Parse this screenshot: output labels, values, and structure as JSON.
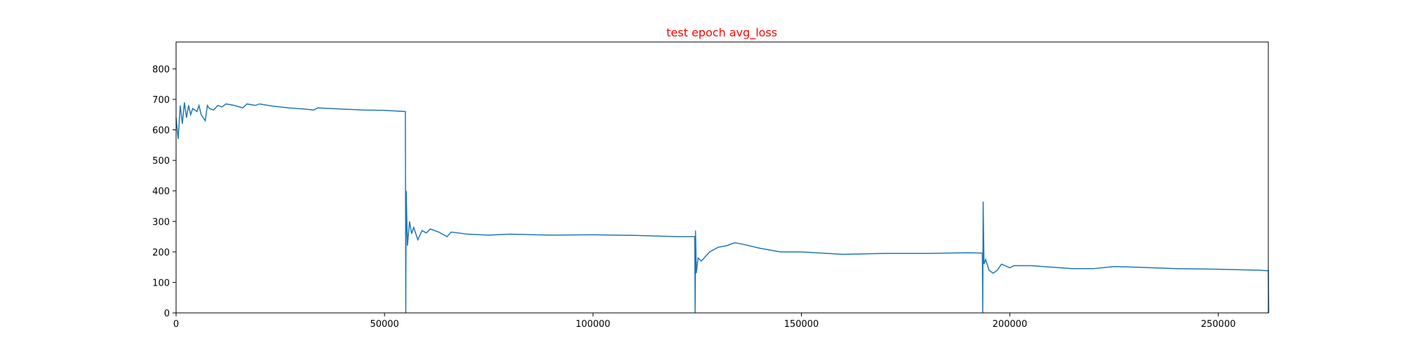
{
  "chart_data": {
    "type": "line",
    "title": "test epoch avg_loss",
    "title_color": "#ff0000",
    "x": [
      0,
      500,
      1000,
      1500,
      2000,
      2500,
      3000,
      3500,
      4000,
      5000,
      5500,
      6000,
      7000,
      7500,
      8000,
      9000,
      10000,
      11000,
      12000,
      14000,
      16000,
      17000,
      19000,
      20000,
      23000,
      27000,
      31000,
      33000,
      34000,
      40000,
      45000,
      50000,
      55000,
      55100,
      55200,
      55500,
      56000,
      56500,
      57000,
      58000,
      59000,
      60000,
      61000,
      63000,
      65000,
      66000,
      70000,
      75000,
      80000,
      90000,
      100000,
      110000,
      120000,
      124400,
      124500,
      124600,
      124800,
      125200,
      126000,
      128000,
      130000,
      132000,
      134000,
      136000,
      140000,
      145000,
      150000,
      160000,
      170000,
      180000,
      190000,
      193400,
      193500,
      193600,
      193800,
      194200,
      195000,
      196000,
      197000,
      198000,
      200000,
      201000,
      205000,
      210000,
      215000,
      220000,
      225000,
      230000,
      240000,
      250000,
      260000,
      262000,
      262100
    ],
    "series": [
      {
        "name": "avg_loss",
        "color": "#1f77b4",
        "values": [
          640,
          570,
          680,
          620,
          690,
          640,
          680,
          650,
          670,
          660,
          680,
          650,
          630,
          680,
          670,
          665,
          680,
          675,
          685,
          680,
          672,
          685,
          680,
          685,
          678,
          672,
          668,
          665,
          672,
          668,
          665,
          664,
          660,
          0,
          400,
          220,
          300,
          260,
          280,
          240,
          270,
          262,
          275,
          265,
          250,
          265,
          258,
          255,
          258,
          255,
          256,
          254,
          250,
          250,
          0,
          270,
          130,
          180,
          170,
          200,
          215,
          220,
          230,
          225,
          212,
          200,
          200,
          192,
          195,
          195,
          197,
          196,
          0,
          365,
          160,
          175,
          140,
          130,
          140,
          160,
          148,
          155,
          155,
          150,
          145,
          145,
          152,
          150,
          145,
          143,
          140,
          138,
          0
        ]
      }
    ],
    "xlim": [
      0,
      262000
    ],
    "ylim": [
      0,
      888
    ],
    "xticks": [
      0,
      50000,
      100000,
      150000,
      200000,
      250000
    ],
    "yticks": [
      0,
      100,
      200,
      300,
      400,
      500,
      600,
      700,
      800
    ]
  }
}
